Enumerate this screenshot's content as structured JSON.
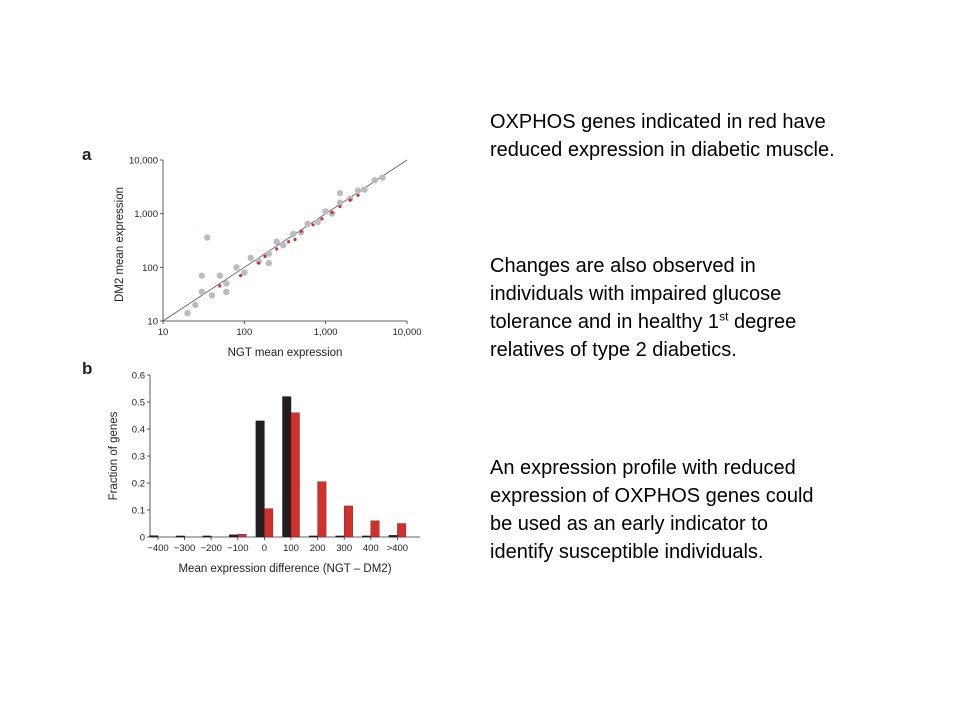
{
  "panel_a_label": "a",
  "panel_b_label": "b",
  "chart_data": [
    {
      "type": "scatter",
      "xlabel": "NGT mean expression",
      "ylabel": "DM2 mean expression",
      "xscale": "log",
      "yscale": "log",
      "xlim": [
        10,
        10000
      ],
      "ylim": [
        10,
        10000
      ],
      "x_ticks": [
        "10",
        "100",
        "1,000",
        "10,000"
      ],
      "y_ticks": [
        "10",
        "100",
        "1,000",
        "10,000"
      ],
      "reference_line": "identity (y = x)",
      "series": [
        {
          "color": "#b9bcc0",
          "points": [
            [
              20,
              14
            ],
            [
              25,
              20
            ],
            [
              30,
              35
            ],
            [
              40,
              30
            ],
            [
              50,
              70
            ],
            [
              60,
              50
            ],
            [
              80,
              100
            ],
            [
              100,
              80
            ],
            [
              120,
              150
            ],
            [
              150,
              130
            ],
            [
              200,
              180
            ],
            [
              250,
              300
            ],
            [
              300,
              260
            ],
            [
              400,
              420
            ],
            [
              500,
              450
            ],
            [
              600,
              640
            ],
            [
              800,
              700
            ],
            [
              1000,
              1100
            ],
            [
              1200,
              1000
            ],
            [
              1500,
              1600
            ],
            [
              2000,
              1900
            ],
            [
              2500,
              2700
            ],
            [
              3000,
              2800
            ],
            [
              4000,
              4200
            ],
            [
              5000,
              4700
            ],
            [
              30,
              70
            ],
            [
              60,
              35
            ],
            [
              200,
              120
            ],
            [
              35,
              360
            ],
            [
              1500,
              2400
            ]
          ]
        },
        {
          "color": "#d0312d",
          "points": [
            [
              50,
              45
            ],
            [
              90,
              70
            ],
            [
              150,
              120
            ],
            [
              180,
              160
            ],
            [
              250,
              220
            ],
            [
              350,
              300
            ],
            [
              420,
              330
            ],
            [
              500,
              470
            ],
            [
              700,
              620
            ],
            [
              900,
              800
            ],
            [
              1200,
              1050
            ],
            [
              1500,
              1350
            ],
            [
              2000,
              1800
            ],
            [
              2500,
              2200
            ]
          ]
        }
      ]
    },
    {
      "type": "bar",
      "xlabel": "Mean expression difference (NGT – DM2)",
      "ylabel": "Fraction of genes",
      "categories": [
        "−400",
        "−300",
        "−200",
        "−100",
        "0",
        "100",
        "200",
        "300",
        "400",
        ">400"
      ],
      "ylim": [
        0,
        0.6
      ],
      "y_ticks": [
        "0",
        "0.1",
        "0.2",
        "0.3",
        "0.4",
        "0.5",
        "0.6"
      ],
      "series": [
        {
          "color": "#231f20",
          "values": [
            0.005,
            0.004,
            0.004,
            0.008,
            0.43,
            0.52,
            0.004,
            0.004,
            0.004,
            0.006
          ]
        },
        {
          "color": "#d0312d",
          "values": [
            0.0,
            0.0,
            0.0,
            0.01,
            0.105,
            0.46,
            0.205,
            0.115,
            0.06,
            0.05
          ]
        }
      ]
    }
  ],
  "text": {
    "p1": "OXPHOS genes indicated in red have reduced expression in diabetic muscle.",
    "p2_before": "Changes are also observed in individuals with impaired glucose tolerance and in healthy 1",
    "p2_sup": "st",
    "p2_after": " degree relatives of type 2 diabetics.",
    "p3": "An expression profile with reduced expression of OXPHOS genes could be used as an early indicator to identify susceptible individuals."
  }
}
